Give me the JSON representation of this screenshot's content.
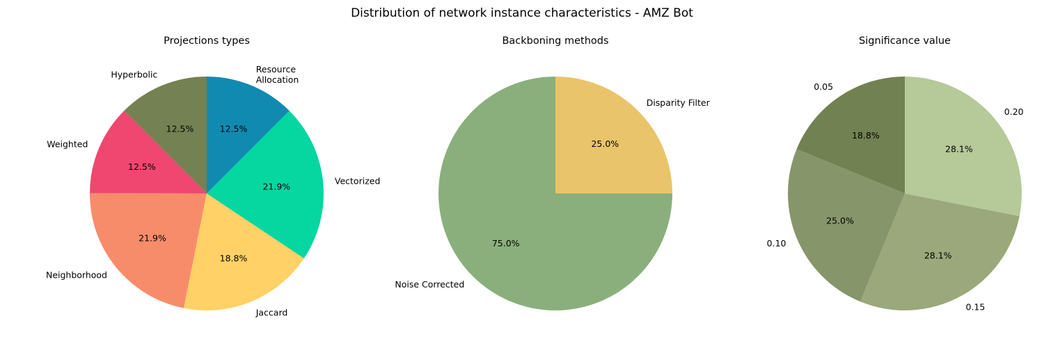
{
  "figure_title": "Distribution of network instance characteristics - AMZ Bot",
  "chart_data": [
    {
      "type": "pie",
      "title": "Projections types",
      "start_angle_deg": 90,
      "direction": "counterclockwise",
      "slices": [
        {
          "label": "Hyperbolic",
          "value": 12.5,
          "pct_label": "12.5%",
          "color": "#748153"
        },
        {
          "label": "Weighted",
          "value": 12.5,
          "pct_label": "12.5%",
          "color": "#ef476f"
        },
        {
          "label": "Neighborhood",
          "value": 21.9,
          "pct_label": "21.9%",
          "color": "#f78c6b"
        },
        {
          "label": "Jaccard",
          "value": 18.8,
          "pct_label": "18.8%",
          "color": "#ffd166"
        },
        {
          "label": "Vectorized",
          "value": 21.9,
          "pct_label": "21.9%",
          "color": "#06d6a0"
        },
        {
          "label": "Resource\nAllocation",
          "value": 12.5,
          "pct_label": "12.5%",
          "color": "#118ab2"
        }
      ]
    },
    {
      "type": "pie",
      "title": "Backboning methods",
      "start_angle_deg": 90,
      "direction": "counterclockwise",
      "slices": [
        {
          "label": "Noise Corrected",
          "value": 75.0,
          "pct_label": "75.0%",
          "color": "#8aaf7c"
        },
        {
          "label": "Disparity Filter",
          "value": 25.0,
          "pct_label": "25.0%",
          "color": "#e9c46a"
        }
      ]
    },
    {
      "type": "pie",
      "title": "Significance value",
      "start_angle_deg": 90,
      "direction": "counterclockwise",
      "slices": [
        {
          "label": "0.05",
          "value": 18.8,
          "pct_label": "18.8%",
          "color": "#728152"
        },
        {
          "label": "0.10",
          "value": 25.0,
          "pct_label": "25.0%",
          "color": "#87956a"
        },
        {
          "label": "0.15",
          "value": 28.1,
          "pct_label": "28.1%",
          "color": "#9aa87b"
        },
        {
          "label": "0.20",
          "value": 28.1,
          "pct_label": "28.1%",
          "color": "#b6c999"
        }
      ]
    }
  ]
}
